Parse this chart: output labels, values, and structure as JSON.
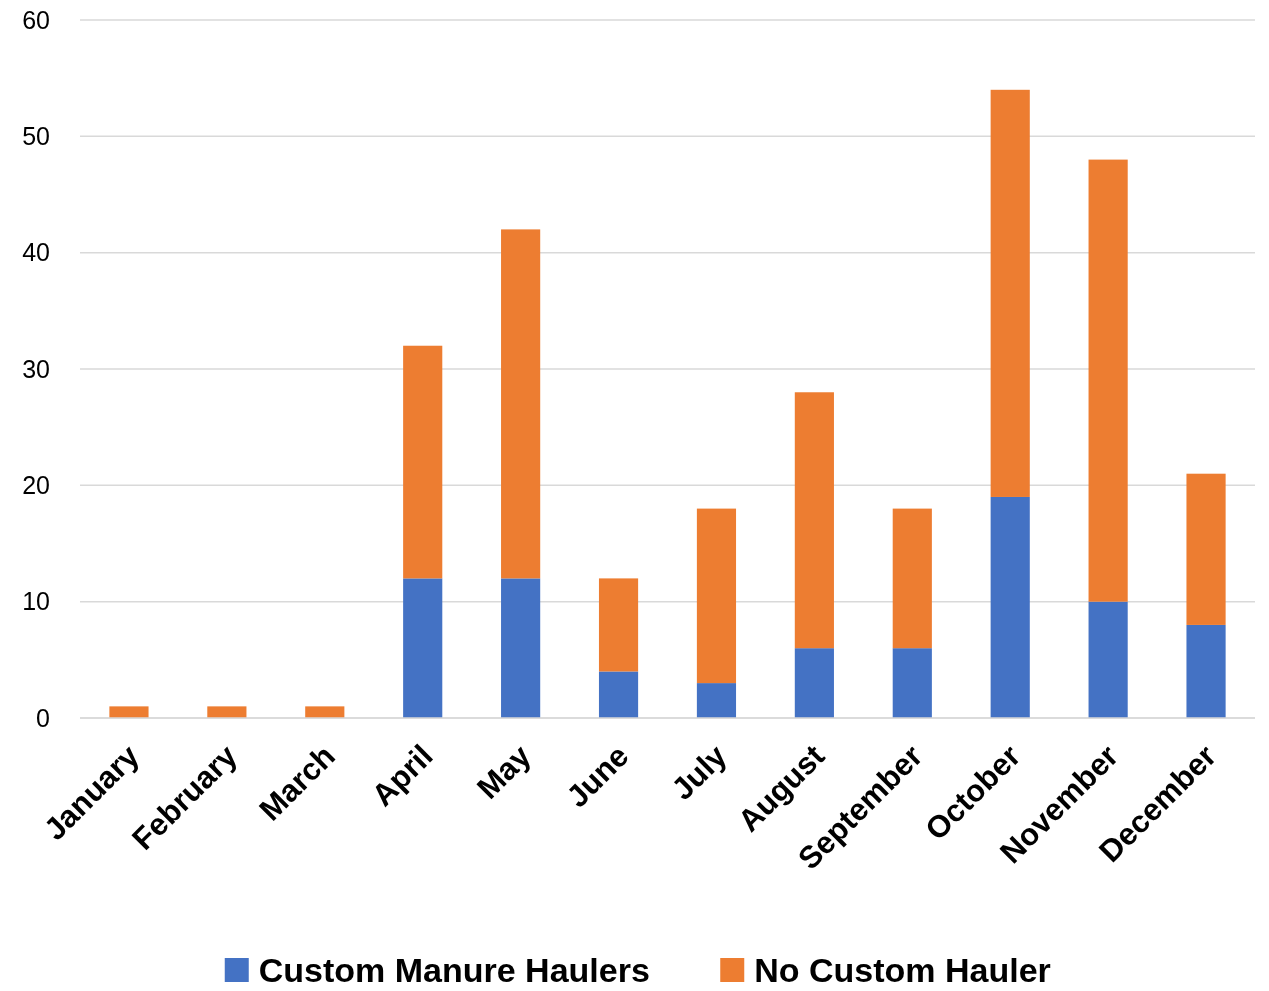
{
  "chart_data": {
    "type": "bar",
    "stacked": true,
    "categories": [
      "January",
      "February",
      "March",
      "April",
      "May",
      "June",
      "July",
      "August",
      "September",
      "October",
      "November",
      "December"
    ],
    "series": [
      {
        "name": "Custom Manure Haulers",
        "color": "#4472c4",
        "values": [
          0,
          0,
          0,
          12,
          12,
          4,
          3,
          6,
          6,
          19,
          10,
          8
        ]
      },
      {
        "name": "No Custom Hauler",
        "color": "#ed7d31",
        "values": [
          1,
          1,
          1,
          20,
          30,
          8,
          15,
          22,
          12,
          35,
          38,
          13
        ]
      }
    ],
    "ylim": [
      0,
      60
    ],
    "yticks": [
      0,
      10,
      20,
      30,
      40,
      50,
      60
    ],
    "grid": "y",
    "legend": "bottom"
  }
}
